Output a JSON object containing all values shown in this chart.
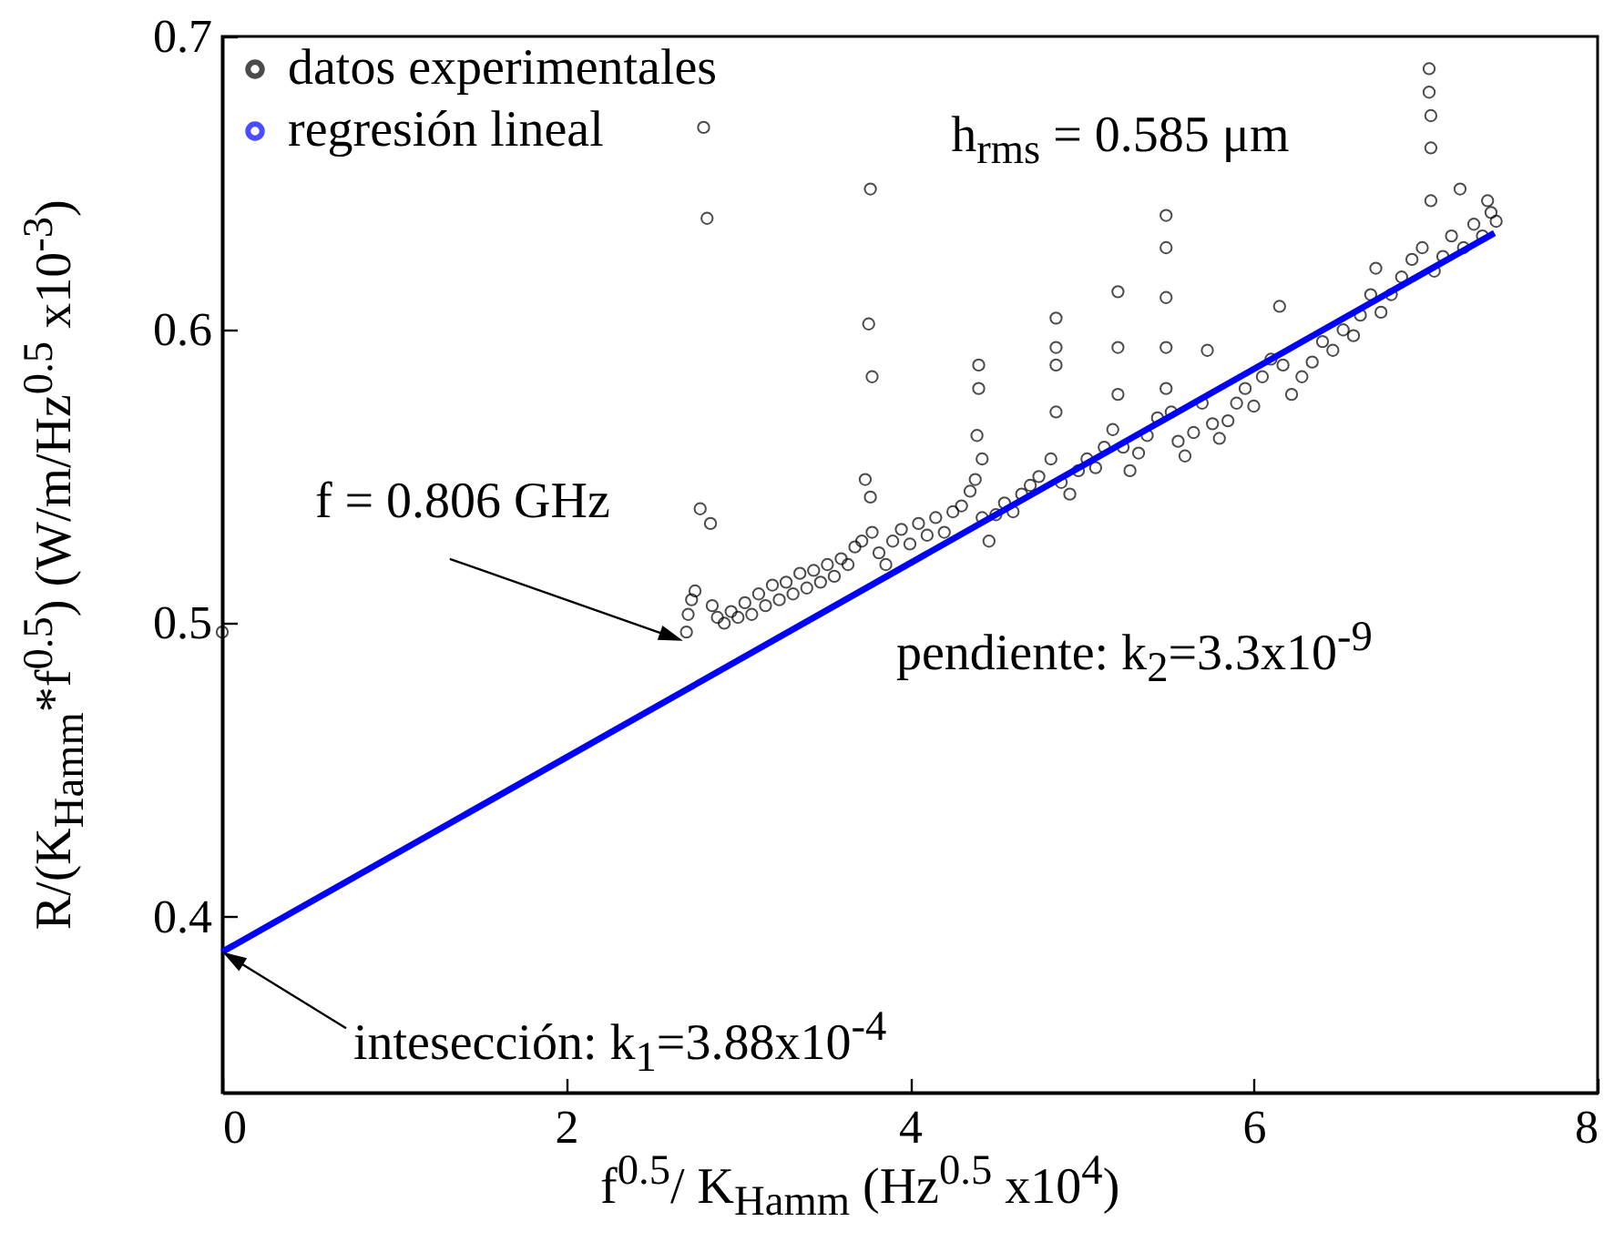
{
  "chart_data": {
    "type": "scatter",
    "xlabel": "f$^{0.5}$/ K$_{Hamm}$ (Hz$^{0.5}$ x10$^{4}$)",
    "ylabel": "R/(K$_{Hamm}$*f$^{0.5}$) (W/m/Hz$^{0.5}$ x10$^{-3}$)",
    "xlim": [
      0,
      8
    ],
    "xticks": [
      0,
      2,
      4,
      6,
      8
    ],
    "ylim": [
      0.34,
      0.7
    ],
    "yticks": [
      0.4,
      0.5,
      0.6,
      0.7
    ],
    "grid": false,
    "legend": "top left",
    "series": [
      {
        "name": "datos experimentales",
        "type": "scatter",
        "marker": "circle",
        "color": "#000000",
        "x": [
          0,
          2.7,
          2.71,
          2.73,
          2.75,
          2.78,
          2.84,
          2.8,
          2.82,
          2.85,
          2.88,
          2.92,
          2.96,
          3.0,
          3.04,
          3.08,
          3.12,
          3.16,
          3.2,
          3.24,
          3.28,
          3.32,
          3.36,
          3.4,
          3.44,
          3.48,
          3.52,
          3.56,
          3.6,
          3.64,
          3.68,
          3.72,
          3.74,
          3.77,
          3.76,
          3.77,
          3.78,
          3.78,
          3.82,
          3.86,
          3.9,
          3.95,
          4.0,
          4.05,
          4.1,
          4.15,
          4.2,
          4.25,
          4.3,
          4.35,
          4.38,
          4.42,
          4.39,
          4.4,
          4.4,
          4.42,
          4.46,
          4.5,
          4.55,
          4.6,
          4.65,
          4.7,
          4.75,
          4.82,
          4.85,
          4.85,
          4.85,
          4.85,
          4.88,
          4.93,
          4.98,
          5.03,
          5.08,
          5.13,
          5.18,
          5.21,
          5.21,
          5.21,
          5.24,
          5.28,
          5.33,
          5.38,
          5.44,
          5.49,
          5.49,
          5.49,
          5.49,
          5.49,
          5.52,
          5.56,
          5.6,
          5.65,
          5.7,
          5.73,
          5.76,
          5.8,
          5.85,
          5.9,
          5.95,
          6.0,
          6.05,
          6.1,
          6.15,
          6.17,
          6.22,
          6.28,
          6.34,
          6.4,
          6.46,
          6.52,
          6.58,
          6.62,
          6.68,
          6.71,
          6.74,
          6.8,
          6.86,
          6.92,
          6.98,
          7.02,
          7.02,
          7.03,
          7.03,
          7.03,
          7.05,
          7.1,
          7.15,
          7.2,
          7.22,
          7.28,
          7.33,
          7.36,
          7.38,
          7.41
        ],
        "values": [
          0.497,
          0.497,
          0.503,
          0.508,
          0.511,
          0.539,
          0.534,
          0.669,
          0.638,
          0.506,
          0.502,
          0.5,
          0.504,
          0.502,
          0.507,
          0.503,
          0.51,
          0.506,
          0.513,
          0.508,
          0.514,
          0.51,
          0.517,
          0.512,
          0.518,
          0.514,
          0.52,
          0.516,
          0.522,
          0.52,
          0.526,
          0.528,
          0.549,
          0.543,
          0.602,
          0.648,
          0.584,
          0.531,
          0.524,
          0.52,
          0.528,
          0.532,
          0.527,
          0.534,
          0.53,
          0.536,
          0.531,
          0.538,
          0.54,
          0.545,
          0.549,
          0.556,
          0.564,
          0.58,
          0.588,
          0.536,
          0.528,
          0.537,
          0.541,
          0.538,
          0.544,
          0.547,
          0.55,
          0.556,
          0.572,
          0.588,
          0.594,
          0.604,
          0.548,
          0.544,
          0.552,
          0.556,
          0.553,
          0.56,
          0.566,
          0.578,
          0.594,
          0.613,
          0.56,
          0.552,
          0.558,
          0.564,
          0.57,
          0.58,
          0.594,
          0.611,
          0.628,
          0.639,
          0.572,
          0.562,
          0.557,
          0.565,
          0.575,
          0.593,
          0.568,
          0.563,
          0.569,
          0.575,
          0.58,
          0.574,
          0.584,
          0.59,
          0.608,
          0.588,
          0.578,
          0.584,
          0.589,
          0.596,
          0.593,
          0.6,
          0.598,
          0.605,
          0.612,
          0.621,
          0.606,
          0.612,
          0.618,
          0.624,
          0.628,
          0.689,
          0.681,
          0.673,
          0.662,
          0.644,
          0.62,
          0.625,
          0.632,
          0.648,
          0.628,
          0.636,
          0.632,
          0.644,
          0.64,
          0.637
        ]
      },
      {
        "name": "regresión lineal",
        "type": "line",
        "marker": "none",
        "line_style": "solid",
        "color": "#0000ff",
        "x": [
          0,
          7.4
        ],
        "values": [
          0.388,
          0.633
        ]
      }
    ],
    "annotations": [
      {
        "text": "f = 0.806 GHz",
        "x": 2.68,
        "y": 0.494
      },
      "h$_{rms}$ = 0.585 μm",
      "pendiente: k$_{2}$=3.3x10$^{-9}$",
      {
        "text": "intesección: k$_{1}$=3.88x10$^{-4}$",
        "x": 0,
        "y": 0.388
      }
    ]
  }
}
